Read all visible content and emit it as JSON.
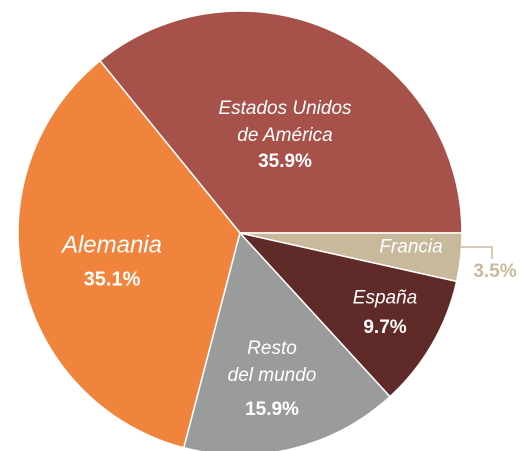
{
  "chart_data": {
    "type": "pie",
    "categories": [
      "Estados Unidos\nde América",
      "Alemania",
      "Resto\ndel mundo",
      "España",
      "Francia"
    ],
    "values": [
      35.9,
      35.1,
      15.9,
      9.7,
      3.5
    ],
    "value_labels": [
      "35.9%",
      "35.1%",
      "15.9%",
      "9.7%",
      "3.5%"
    ],
    "colors": [
      "#a6514a",
      "#f0843c",
      "#9a9c9b",
      "#5f2a27",
      "#c9b99c"
    ]
  }
}
